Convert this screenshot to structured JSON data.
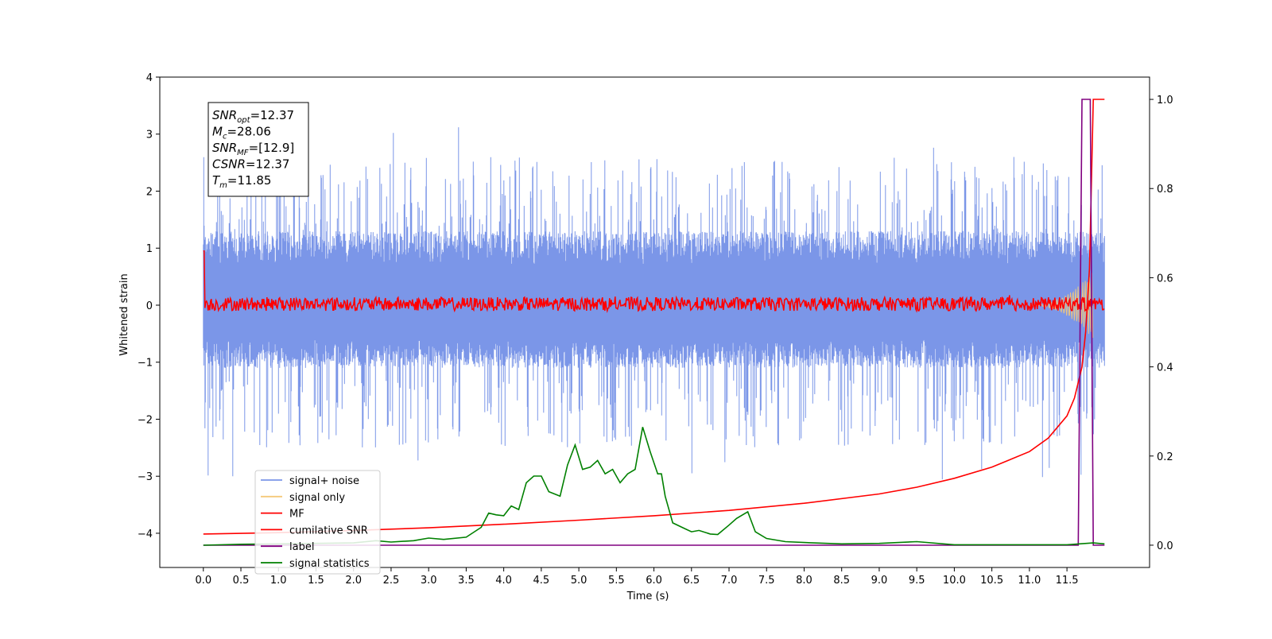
{
  "chart_data": {
    "type": "line",
    "xlabel": "Time (s)",
    "ylabel_left": "Whitened strain",
    "ylabel_right": "",
    "xlim": [
      -0.58,
      12.6
    ],
    "ylim_left": [
      -4.6,
      4.0
    ],
    "ylim_right": [
      -0.05,
      1.05
    ],
    "x_ticks": [
      "0.0",
      "0.5",
      "1.0",
      "1.5",
      "2.0",
      "2.5",
      "3.0",
      "3.5",
      "4.0",
      "4.5",
      "5.0",
      "5.5",
      "6.0",
      "6.5",
      "7.0",
      "7.5",
      "8.0",
      "8.5",
      "9.0",
      "9.5",
      "10.0",
      "10.5",
      "11.0",
      "11.5"
    ],
    "y_ticks_left": [
      "4",
      "3",
      "2",
      "1",
      "0",
      "−1",
      "−2",
      "−3",
      "−4"
    ],
    "y_ticks_left_values": [
      4,
      3,
      2,
      1,
      0,
      -1,
      -2,
      -3,
      -4
    ],
    "y_ticks_right": [
      "1.0",
      "0.8",
      "0.6",
      "0.4",
      "0.2",
      "0.0"
    ],
    "y_ticks_right_values": [
      1.0,
      0.8,
      0.6,
      0.4,
      0.2,
      0.0
    ],
    "info_box": [
      {
        "main": "SNR",
        "sub": "opt",
        "value": "=12.37"
      },
      {
        "main": "M",
        "sub": "c",
        "value": "=28.06"
      },
      {
        "main": "SNR",
        "sub": "MF",
        "value": "=[12.9]"
      },
      {
        "main": "CSNR",
        "sub": "",
        "value": "=12.37"
      },
      {
        "main": "T",
        "sub": "m",
        "value": "=11.85"
      }
    ],
    "legend": {
      "placement": "lower-left",
      "entries": [
        {
          "label": "signal+ noise",
          "color": "#7b96e8"
        },
        {
          "label": "signal only",
          "color": "#f5c97a"
        },
        {
          "label": "MF",
          "color": "#ff0000"
        },
        {
          "label": "cumilative SNR",
          "color": "#ff0000"
        },
        {
          "label": "label",
          "color": "#800080"
        },
        {
          "label": "signal statistics",
          "color": "#008000"
        }
      ]
    },
    "series": [
      {
        "name": "signal+ noise",
        "axis": "left",
        "color": "#7b96e8",
        "style": "dense-noise",
        "x_range": [
          0.0,
          12.0
        ],
        "band_upper": 1.3,
        "band_lower": -1.1,
        "peak_max": 3.15,
        "peak_min": -3.1
      },
      {
        "name": "signal only",
        "axis": "left",
        "color": "#f5c97a",
        "style": "chirp",
        "x_range": [
          11.0,
          11.85
        ],
        "amplitude_max": 0.6
      },
      {
        "name": "MF",
        "axis": "left",
        "color": "#ff0000",
        "style": "noise-small",
        "x_range": [
          0.0,
          12.0
        ],
        "amplitude": 0.12
      },
      {
        "name": "cumilative SNR",
        "axis": "right",
        "color": "#ff0000",
        "x": [
          0.0,
          1.0,
          2.0,
          3.0,
          4.0,
          5.0,
          6.0,
          7.0,
          8.0,
          9.0,
          9.5,
          10.0,
          10.5,
          11.0,
          11.25,
          11.5,
          11.6,
          11.7,
          11.75,
          11.8,
          11.85,
          12.0
        ],
        "y": [
          0.025,
          0.028,
          0.033,
          0.039,
          0.047,
          0.056,
          0.066,
          0.078,
          0.094,
          0.115,
          0.13,
          0.15,
          0.175,
          0.21,
          0.24,
          0.29,
          0.33,
          0.4,
          0.48,
          0.62,
          1.0,
          1.0
        ]
      },
      {
        "name": "label",
        "axis": "right",
        "color": "#800080",
        "x": [
          0.0,
          11.65,
          11.7,
          11.81,
          11.85,
          12.0
        ],
        "y": [
          0.0,
          0.0,
          1.0,
          1.0,
          0.0,
          0.0
        ]
      },
      {
        "name": "signal statistics",
        "axis": "right",
        "color": "#008000",
        "x": [
          0.0,
          0.5,
          1.0,
          1.5,
          2.0,
          2.3,
          2.5,
          2.8,
          3.0,
          3.2,
          3.5,
          3.7,
          3.8,
          3.9,
          4.0,
          4.1,
          4.2,
          4.3,
          4.4,
          4.5,
          4.6,
          4.75,
          4.85,
          4.95,
          5.05,
          5.15,
          5.25,
          5.35,
          5.45,
          5.55,
          5.65,
          5.75,
          5.85,
          5.95,
          6.05,
          6.1,
          6.15,
          6.25,
          6.4,
          6.5,
          6.6,
          6.75,
          6.85,
          7.0,
          7.1,
          7.25,
          7.35,
          7.5,
          7.75,
          8.0,
          8.5,
          9.0,
          9.5,
          10.0,
          11.0,
          11.5,
          11.85,
          12.0
        ],
        "y": [
          0.0,
          0.002,
          0.003,
          0.004,
          0.005,
          0.01,
          0.007,
          0.01,
          0.016,
          0.013,
          0.018,
          0.04,
          0.072,
          0.068,
          0.066,
          0.088,
          0.08,
          0.14,
          0.155,
          0.155,
          0.12,
          0.11,
          0.18,
          0.225,
          0.17,
          0.175,
          0.19,
          0.16,
          0.17,
          0.14,
          0.16,
          0.17,
          0.265,
          0.21,
          0.16,
          0.16,
          0.11,
          0.05,
          0.038,
          0.03,
          0.033,
          0.025,
          0.024,
          0.045,
          0.06,
          0.075,
          0.03,
          0.015,
          0.008,
          0.006,
          0.003,
          0.004,
          0.008,
          0.001,
          0.001,
          0.001,
          0.005,
          0.003
        ]
      }
    ]
  }
}
